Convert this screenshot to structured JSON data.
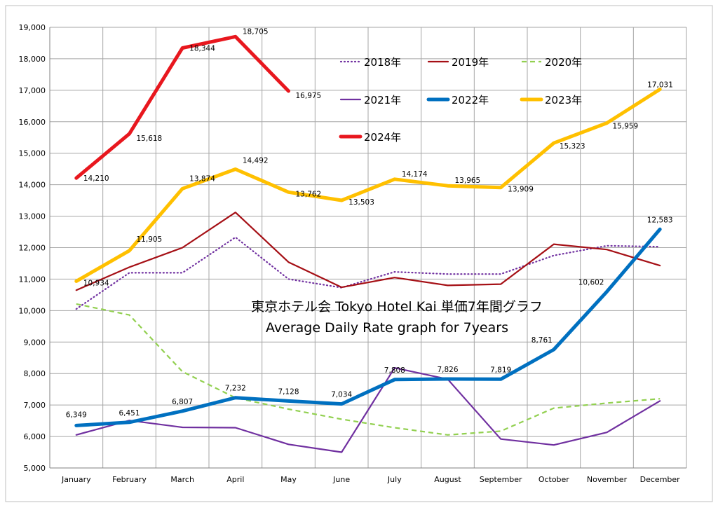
{
  "chart_data": {
    "type": "line",
    "title": "東京ホテル会  Tokyo Hotel Kai  単価7年間グラフ",
    "subtitle": "Average Daily Rate graph for 7years",
    "xlabel": "",
    "ylabel": "",
    "ylim": [
      5000,
      19000
    ],
    "y_ticks": [
      5000,
      6000,
      7000,
      8000,
      9000,
      10000,
      11000,
      12000,
      13000,
      14000,
      15000,
      16000,
      17000,
      18000,
      19000
    ],
    "y_tick_labels": [
      "5,000",
      "6,000",
      "7,000",
      "8,000",
      "9,000",
      "10,000",
      "11,000",
      "12,000",
      "13,000",
      "14,000",
      "15,000",
      "16,000",
      "17,000",
      "18,000",
      "19,000"
    ],
    "grid": true,
    "legend_position": "top-right",
    "categories": [
      "January",
      "February",
      "March",
      "April",
      "May",
      "June",
      "July",
      "August",
      "September",
      "October",
      "November",
      "December"
    ],
    "series": [
      {
        "name": "2018年",
        "color": "#7030a0",
        "style": "dotted",
        "values": [
          10050,
          11200,
          11200,
          12330,
          11000,
          10730,
          11230,
          11160,
          11160,
          11750,
          12060,
          12030
        ],
        "labels": []
      },
      {
        "name": "2019年",
        "color": "#a50f15",
        "style": "solid",
        "values": [
          10650,
          11380,
          12000,
          13120,
          11540,
          10740,
          11050,
          10800,
          10840,
          12110,
          11940,
          11430
        ],
        "labels": []
      },
      {
        "name": "2020年",
        "color": "#92d050",
        "style": "dashed",
        "values": [
          10210,
          9860,
          8060,
          7230,
          6870,
          6550,
          6280,
          6050,
          6170,
          6900,
          7060,
          7200
        ],
        "labels": []
      },
      {
        "name": "2021年",
        "color": "#7030a0",
        "style": "solid",
        "values": [
          6050,
          6510,
          6290,
          6280,
          5750,
          5500,
          8180,
          7820,
          5920,
          5730,
          6130,
          7130
        ],
        "labels": []
      },
      {
        "name": "2022年",
        "color": "#0070c0",
        "style": "thick",
        "values": [
          6349,
          6451,
          6807,
          7232,
          7128,
          7034,
          7808,
          7826,
          7819,
          8761,
          10602,
          12583
        ],
        "labels": [
          "6,349",
          "6,451",
          "6,807",
          "7,232",
          "7,128",
          "7,034",
          "7,808",
          "7,826",
          "7,819",
          "8,761",
          "10,602",
          "12,583"
        ]
      },
      {
        "name": "2023年",
        "color": "#ffc000",
        "style": "thick",
        "values": [
          10934,
          11905,
          13874,
          14492,
          13762,
          13503,
          14174,
          13965,
          13909,
          15323,
          15959,
          17031
        ],
        "labels": [
          "10,934",
          "11,905",
          "13,874",
          "14,492",
          "13,762",
          "13,503",
          "14,174",
          "13,965",
          "13,909",
          "15,323",
          "15,959",
          "17,031"
        ]
      },
      {
        "name": "2024年",
        "color": "#e8171e",
        "style": "thick",
        "values": [
          14210,
          15618,
          18344,
          18705,
          16975,
          null,
          null,
          null,
          null,
          null,
          null,
          null
        ],
        "labels": [
          "14,210",
          "15,618",
          "18,344",
          "18,705",
          "16,975"
        ]
      }
    ]
  }
}
